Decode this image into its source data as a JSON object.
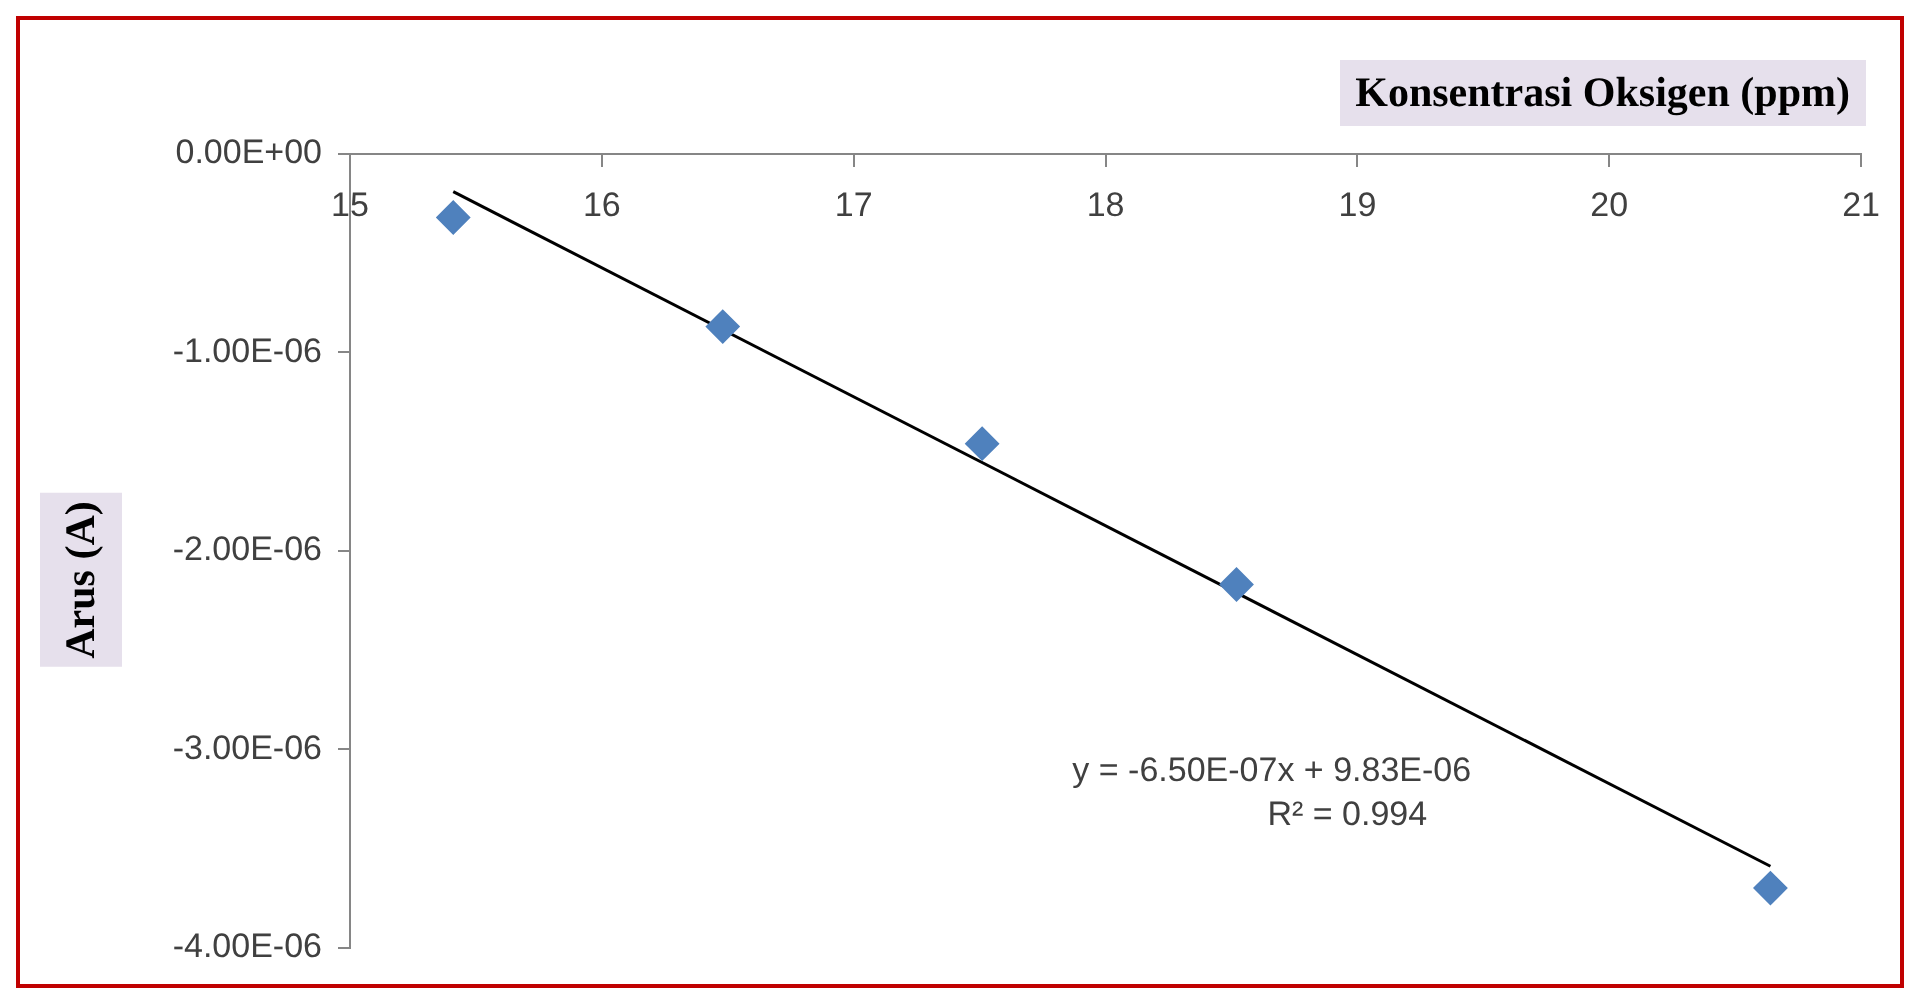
{
  "chart_data": {
    "type": "scatter",
    "xlabel": "Konsentrasi Oksigen (ppm)",
    "ylabel": "Arus (A)",
    "series": [
      {
        "type": "scatter",
        "color": "#4f81bd",
        "marker": "diamond",
        "x": [
          15.41,
          16.48,
          17.51,
          18.52,
          20.64
        ],
        "values": [
          -3.2e-07,
          -8.7e-07,
          -1.46e-06,
          -2.17e-06,
          -3.7e-06
        ]
      },
      {
        "type": "line",
        "color": "#000000",
        "marker": "none",
        "line_style": "solid",
        "x": [
          15.41,
          20.64
        ],
        "values": [
          -1.9e-07,
          -3.59e-06
        ]
      }
    ],
    "xlim": [
      15,
      21
    ],
    "xticks": [
      15,
      16,
      17,
      18,
      19,
      20,
      21
    ],
    "ylim": [
      -4e-06,
      0
    ],
    "yticks": [
      {
        "value": 0,
        "label": "0.00E+00"
      },
      {
        "value": -1e-06,
        "label": "-1.00E-06"
      },
      {
        "value": -2e-06,
        "label": "-2.00E-06"
      },
      {
        "value": -3e-06,
        "label": "-3.00E-06"
      },
      {
        "value": -4e-06,
        "label": "-4.00E-06"
      }
    ],
    "grid": false,
    "legend": false,
    "annotations": [
      "y = -6.50E-07x + 9.83E-06",
      "R² = 0.994"
    ]
  }
}
